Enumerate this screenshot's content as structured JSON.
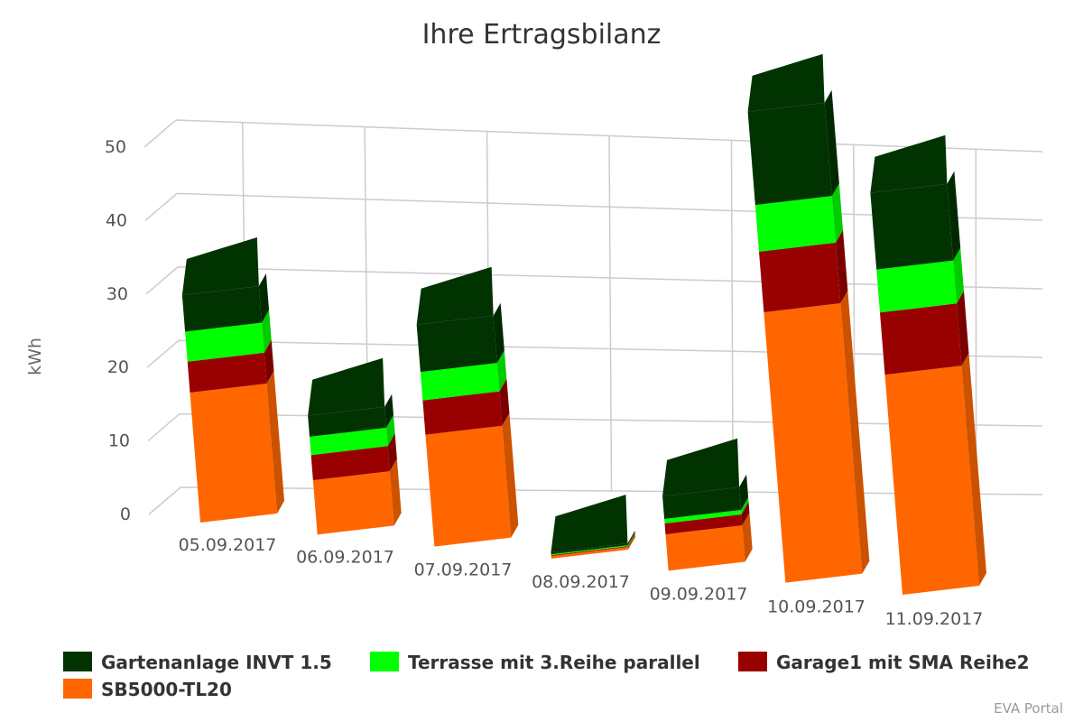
{
  "chart_data": {
    "type": "bar",
    "stacked": true,
    "three_d": true,
    "title": "Ihre Ertragsbilanz",
    "ylabel": "kWh",
    "xlabel": "",
    "ylim": [
      0,
      50
    ],
    "yticks": [
      "0",
      "10",
      "20",
      "30",
      "40",
      "50"
    ],
    "categories": [
      "05.09.2017",
      "06.09.2017",
      "07.09.2017",
      "08.09.2017",
      "09.09.2017",
      "10.09.2017",
      "11.09.2017"
    ],
    "series": [
      {
        "name": "SB5000-TL20",
        "color": "#ff6600",
        "values": [
          16.0,
          6.5,
          13.0,
          0.3,
          4.0,
          29.0,
          23.0
        ]
      },
      {
        "name": "Garage1 mit SMA Reihe2",
        "color": "#990000",
        "values": [
          3.8,
          3.0,
          4.0,
          0.1,
          1.2,
          6.5,
          6.5
        ]
      },
      {
        "name": "Terrasse mit 3.Reihe parallel",
        "color": "#00ff00",
        "values": [
          3.7,
          2.2,
          3.3,
          0.1,
          0.5,
          5.0,
          4.5
        ]
      },
      {
        "name": "Gartenanlage INVT 1.5",
        "color": "#003300",
        "values": [
          4.5,
          2.5,
          5.5,
          0.2,
          2.5,
          10.0,
          8.0
        ]
      }
    ],
    "grid": true,
    "legend_position": "bottom"
  },
  "legend": {
    "items": [
      {
        "name": "Gartenanlage INVT 1.5",
        "color": "#003300"
      },
      {
        "name": "Terrasse mit 3.Reihe parallel",
        "color": "#00ff00"
      },
      {
        "name": "Garage1 mit SMA Reihe2",
        "color": "#990000"
      },
      {
        "name": "SB5000-TL20",
        "color": "#ff6600"
      }
    ]
  },
  "credit": "EVA Portal"
}
